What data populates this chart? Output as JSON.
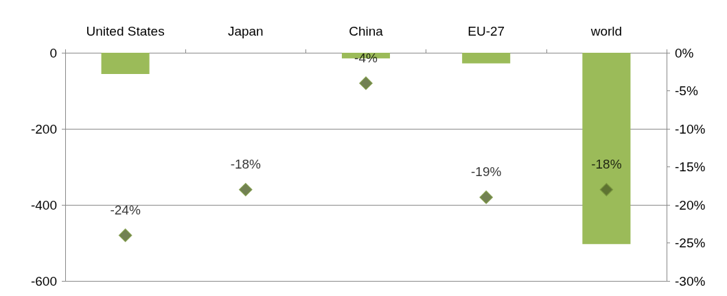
{
  "chart_data": {
    "type": "bar",
    "categories": [
      "United States",
      "Japan",
      "China",
      "EU-27",
      "world"
    ],
    "series": [
      {
        "color": "#9bbb59",
        "values": [
          -56,
          0,
          -15,
          -28,
          -503
        ]
      },
      {
        "type": "scatter",
        "axis": "y2",
        "color": "#4f6228",
        "marker": "diamond",
        "values": [
          -24,
          -18,
          -4,
          -19,
          -18
        ],
        "value_labels": [
          "-24%",
          "-18%",
          "-4%",
          "-19%",
          "-18%"
        ]
      }
    ],
    "ylim": [
      -600,
      0
    ],
    "yticks": [
      -600,
      -400,
      -200,
      0
    ],
    "y2lim": [
      -30,
      0
    ],
    "y2ticks": [
      {
        "value": -30,
        "label": "-30%"
      },
      {
        "value": -25,
        "label": "-25%"
      },
      {
        "value": -20,
        "label": "-20%"
      },
      {
        "value": -15,
        "label": "-15%"
      },
      {
        "value": -10,
        "label": "-10%"
      },
      {
        "value": -5,
        "label": "-5%"
      },
      {
        "value": 0,
        "label": "0%"
      }
    ],
    "grid": "y"
  }
}
